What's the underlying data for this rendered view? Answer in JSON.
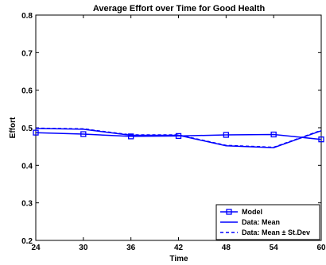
{
  "chart_data": {
    "type": "line",
    "title": "Average Effort over Time for Good Health",
    "xlabel": "Time",
    "ylabel": "Effort",
    "xlim": [
      24,
      60
    ],
    "ylim": [
      0.2,
      0.8
    ],
    "xticks": [
      "24",
      "30",
      "36",
      "42",
      "48",
      "54",
      "60"
    ],
    "yticks": [
      "0.2",
      "0.3",
      "0.4",
      "0.5",
      "0.6",
      "0.7",
      "0.8"
    ],
    "grid": false,
    "legend_position": "bottom-right",
    "series": [
      {
        "name": "Model",
        "style": "solid-square-markers",
        "color": "#0000ff",
        "x": [
          24,
          30,
          36,
          42,
          48,
          54,
          60
        ],
        "y": [
          0.487,
          0.483,
          0.477,
          0.478,
          0.481,
          0.482,
          0.469
        ]
      },
      {
        "name": "Data: Mean",
        "style": "solid",
        "color": "#0000ff",
        "x": [
          24,
          30,
          36,
          42,
          48,
          54,
          60
        ],
        "y": [
          0.498,
          0.496,
          0.48,
          0.48,
          0.452,
          0.447,
          0.492
        ]
      },
      {
        "name": "Data: Mean ± St.Dev",
        "style": "dashed",
        "color": "#0000ff",
        "x": [
          24,
          30,
          36,
          42,
          48,
          54,
          60
        ],
        "y": [
          0.499,
          0.497,
          0.481,
          0.481,
          0.453,
          0.448,
          0.493
        ]
      }
    ]
  }
}
